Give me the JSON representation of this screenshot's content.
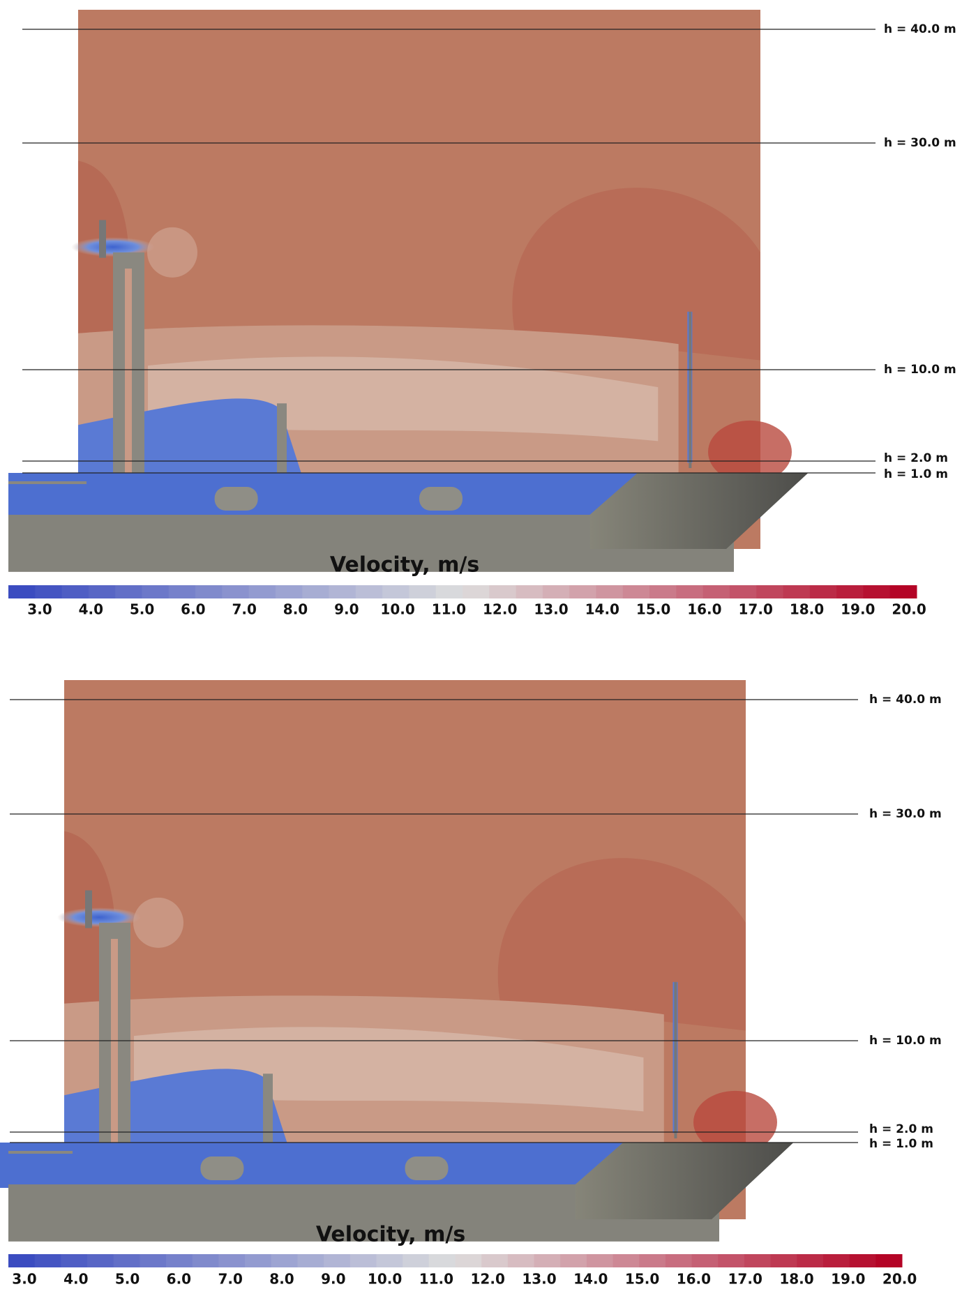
{
  "panels": [
    {
      "lines": [
        "h = 40.0 m",
        "h = 30.0 m",
        "h = 10.0 m",
        "h = 2.0 m",
        "h = 1.0 m"
      ],
      "colorbar": {
        "title": "Velocity, m/s",
        "ticks": [
          "3.0",
          "4.0",
          "5.0",
          "6.0",
          "7.0",
          "8.0",
          "9.0",
          "10.0",
          "11.0",
          "12.0",
          "13.0",
          "14.0",
          "15.0",
          "16.0",
          "17.0",
          "18.0",
          "19.0",
          "20.0"
        ]
      }
    },
    {
      "lines": [
        "h = 40.0 m",
        "h = 30.0 m",
        "h = 10.0 m",
        "h = 2.0 m",
        "h = 1.0 m"
      ],
      "colorbar": {
        "title": "Velocity, m/s",
        "ticks": [
          "3.0",
          "4.0",
          "5.0",
          "6.0",
          "7.0",
          "8.0",
          "9.0",
          "10.0",
          "11.0",
          "12.0",
          "13.0",
          "14.0",
          "15.0",
          "16.0",
          "17.0",
          "18.0",
          "19.0",
          "20.0"
        ]
      }
    }
  ]
}
